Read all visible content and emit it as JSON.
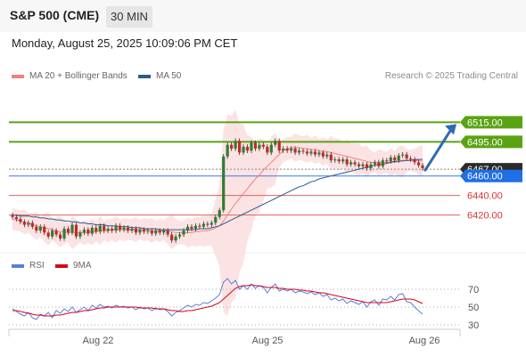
{
  "header": {
    "title": "S&P 500 (CME)",
    "timeframe": "30 MIN"
  },
  "timestamp": "Monday, August 25, 2025 10:09:06 PM CET",
  "legend": {
    "bb_label": "MA 20 + Bollinger Bands",
    "ma50_label": "MA 50",
    "bb_color": "#f08080",
    "ma50_color": "#2b5a8e",
    "credit": "Research © 2025 Trading Central"
  },
  "rsi_legend": {
    "rsi_label": "RSI",
    "ma_label": "9MA",
    "rsi_color": "#5a7fd6",
    "ma_color": "#d9001b"
  },
  "chart_data": [
    {
      "type": "candlestick",
      "title": "S&P 500 (CME) 30 MIN",
      "x_labels": [
        "Aug 22",
        "Aug 25",
        "Aug 26"
      ],
      "ylim": [
        6385,
        6540
      ],
      "resistance_levels": [
        6515.0,
        6495.0
      ],
      "support_levels": [
        6440.0,
        6420.0
      ],
      "pivot": 6460.0,
      "last_price": 6467.0,
      "level_labels": [
        "6515.00",
        "6495.00",
        "6467.00",
        "6460.00",
        "6440.00",
        "6420.00"
      ],
      "close": [
        6418,
        6416,
        6413,
        6410,
        6412,
        6408,
        6404,
        6408,
        6402,
        6398,
        6404,
        6400,
        6396,
        6406,
        6402,
        6410,
        6398,
        6402,
        6405,
        6401,
        6407,
        6403,
        6409,
        6404,
        6406,
        6404,
        6409,
        6405,
        6407,
        6404,
        6406,
        6402,
        6405,
        6403,
        6404,
        6401,
        6404,
        6402,
        6404,
        6400,
        6394,
        6398,
        6400,
        6404,
        6408,
        6406,
        6409,
        6408,
        6411,
        6410,
        6412,
        6418,
        6425,
        6480,
        6492,
        6488,
        6496,
        6484,
        6490,
        6486,
        6494,
        6488,
        6492,
        6490,
        6484,
        6492,
        6496,
        6486,
        6488,
        6486,
        6488,
        6484,
        6486,
        6485,
        6483,
        6485,
        6482,
        6484,
        6480,
        6482,
        6476,
        6477,
        6475,
        6477,
        6472,
        6474,
        6472,
        6470,
        6472,
        6468,
        6472,
        6474,
        6470,
        6476,
        6475,
        6479,
        6476,
        6481,
        6482,
        6478,
        6477,
        6474,
        6471,
        6468
      ],
      "ma20": [
        6416,
        6415,
        6414,
        6413,
        6412,
        6410,
        6409,
        6408,
        6407,
        6406,
        6405,
        6404,
        6403,
        6403,
        6402,
        6402,
        6402,
        6402,
        6402,
        6402,
        6403,
        6403,
        6404,
        6404,
        6404,
        6405,
        6405,
        6405,
        6405,
        6405,
        6405,
        6405,
        6405,
        6405,
        6405,
        6404,
        6404,
        6404,
        6404,
        6404,
        6403,
        6402,
        6402,
        6402,
        6402,
        6402,
        6403,
        6403,
        6404,
        6404,
        6405,
        6407,
        6409,
        6414,
        6420,
        6426,
        6432,
        6437,
        6442,
        6447,
        6452,
        6457,
        6461,
        6466,
        6470,
        6474,
        6478,
        6482,
        6486,
        6488,
        6489,
        6489,
        6489,
        6488,
        6488,
        6487,
        6487,
        6486,
        6485,
        6485,
        6484,
        6483,
        6482,
        6481,
        6480,
        6479,
        6478,
        6477,
        6476,
        6475,
        6474,
        6474,
        6474,
        6474,
        6474,
        6474,
        6474,
        6475,
        6475,
        6476,
        6476,
        6476,
        6476,
        6475
      ],
      "ma50": [
        6420,
        6420,
        6419,
        6419,
        6419,
        6418,
        6418,
        6417,
        6417,
        6416,
        6416,
        6415,
        6415,
        6414,
        6414,
        6413,
        6413,
        6412,
        6412,
        6411,
        6411,
        6410,
        6410,
        6410,
        6409,
        6409,
        6409,
        6408,
        6408,
        6408,
        6407,
        6407,
        6407,
        6406,
        6406,
        6406,
        6406,
        6405,
        6405,
        6405,
        6405,
        6405,
        6405,
        6405,
        6405,
        6405,
        6405,
        6406,
        6406,
        6406,
        6407,
        6408,
        6409,
        6411,
        6413,
        6415,
        6417,
        6419,
        6421,
        6423,
        6425,
        6427,
        6429,
        6431,
        6433,
        6435,
        6437,
        6439,
        6441,
        6443,
        6445,
        6447,
        6449,
        6450,
        6452,
        6454,
        6455,
        6457,
        6458,
        6459,
        6460,
        6461,
        6462,
        6463,
        6464,
        6465,
        6466,
        6467,
        6468,
        6469,
        6470,
        6471,
        6472,
        6472,
        6473,
        6474,
        6475,
        6475,
        6476,
        6476,
        6476,
        6477,
        6477,
        6477
      ],
      "forecast": {
        "from": 6466,
        "to": 6515
      }
    },
    {
      "type": "line",
      "title": "RSI",
      "ylim": [
        20,
        85
      ],
      "y_ticks": [
        70,
        50,
        30
      ],
      "series": [
        {
          "name": "RSI",
          "values": [
            48,
            45,
            42,
            40,
            44,
            38,
            36,
            42,
            40,
            44,
            38,
            46,
            43,
            48,
            45,
            50,
            44,
            47,
            50,
            46,
            52,
            49,
            53,
            50,
            51,
            49,
            52,
            50,
            51,
            49,
            50,
            47,
            50,
            48,
            49,
            46,
            49,
            47,
            48,
            45,
            40,
            44,
            46,
            49,
            52,
            50,
            53,
            52,
            55,
            54,
            57,
            60,
            64,
            78,
            82,
            76,
            80,
            70,
            74,
            70,
            76,
            71,
            74,
            72,
            66,
            72,
            76,
            68,
            70,
            68,
            70,
            66,
            68,
            67,
            65,
            67,
            64,
            66,
            62,
            64,
            58,
            60,
            57,
            59,
            54,
            57,
            55,
            53,
            56,
            50,
            56,
            58,
            52,
            59,
            58,
            62,
            58,
            64,
            65,
            56,
            55,
            50,
            46,
            42
          ]
        },
        {
          "name": "9MA",
          "values": [
            46,
            46,
            45,
            44,
            43,
            42,
            41,
            41,
            40,
            40,
            40,
            41,
            41,
            42,
            43,
            44,
            44,
            45,
            46,
            46,
            47,
            48,
            49,
            49,
            50,
            50,
            50,
            50,
            50,
            50,
            50,
            50,
            49,
            49,
            49,
            49,
            48,
            48,
            48,
            47,
            46,
            46,
            45,
            45,
            46,
            46,
            47,
            48,
            49,
            50,
            51,
            53,
            55,
            59,
            63,
            67,
            71,
            73,
            74,
            74,
            75,
            74,
            74,
            73,
            72,
            72,
            72,
            71,
            71,
            70,
            70,
            70,
            69,
            69,
            68,
            68,
            67,
            66,
            66,
            65,
            64,
            63,
            62,
            61,
            60,
            59,
            58,
            57,
            56,
            55,
            55,
            55,
            55,
            55,
            55,
            56,
            57,
            58,
            59,
            59,
            59,
            58,
            56,
            54
          ]
        }
      ]
    }
  ]
}
